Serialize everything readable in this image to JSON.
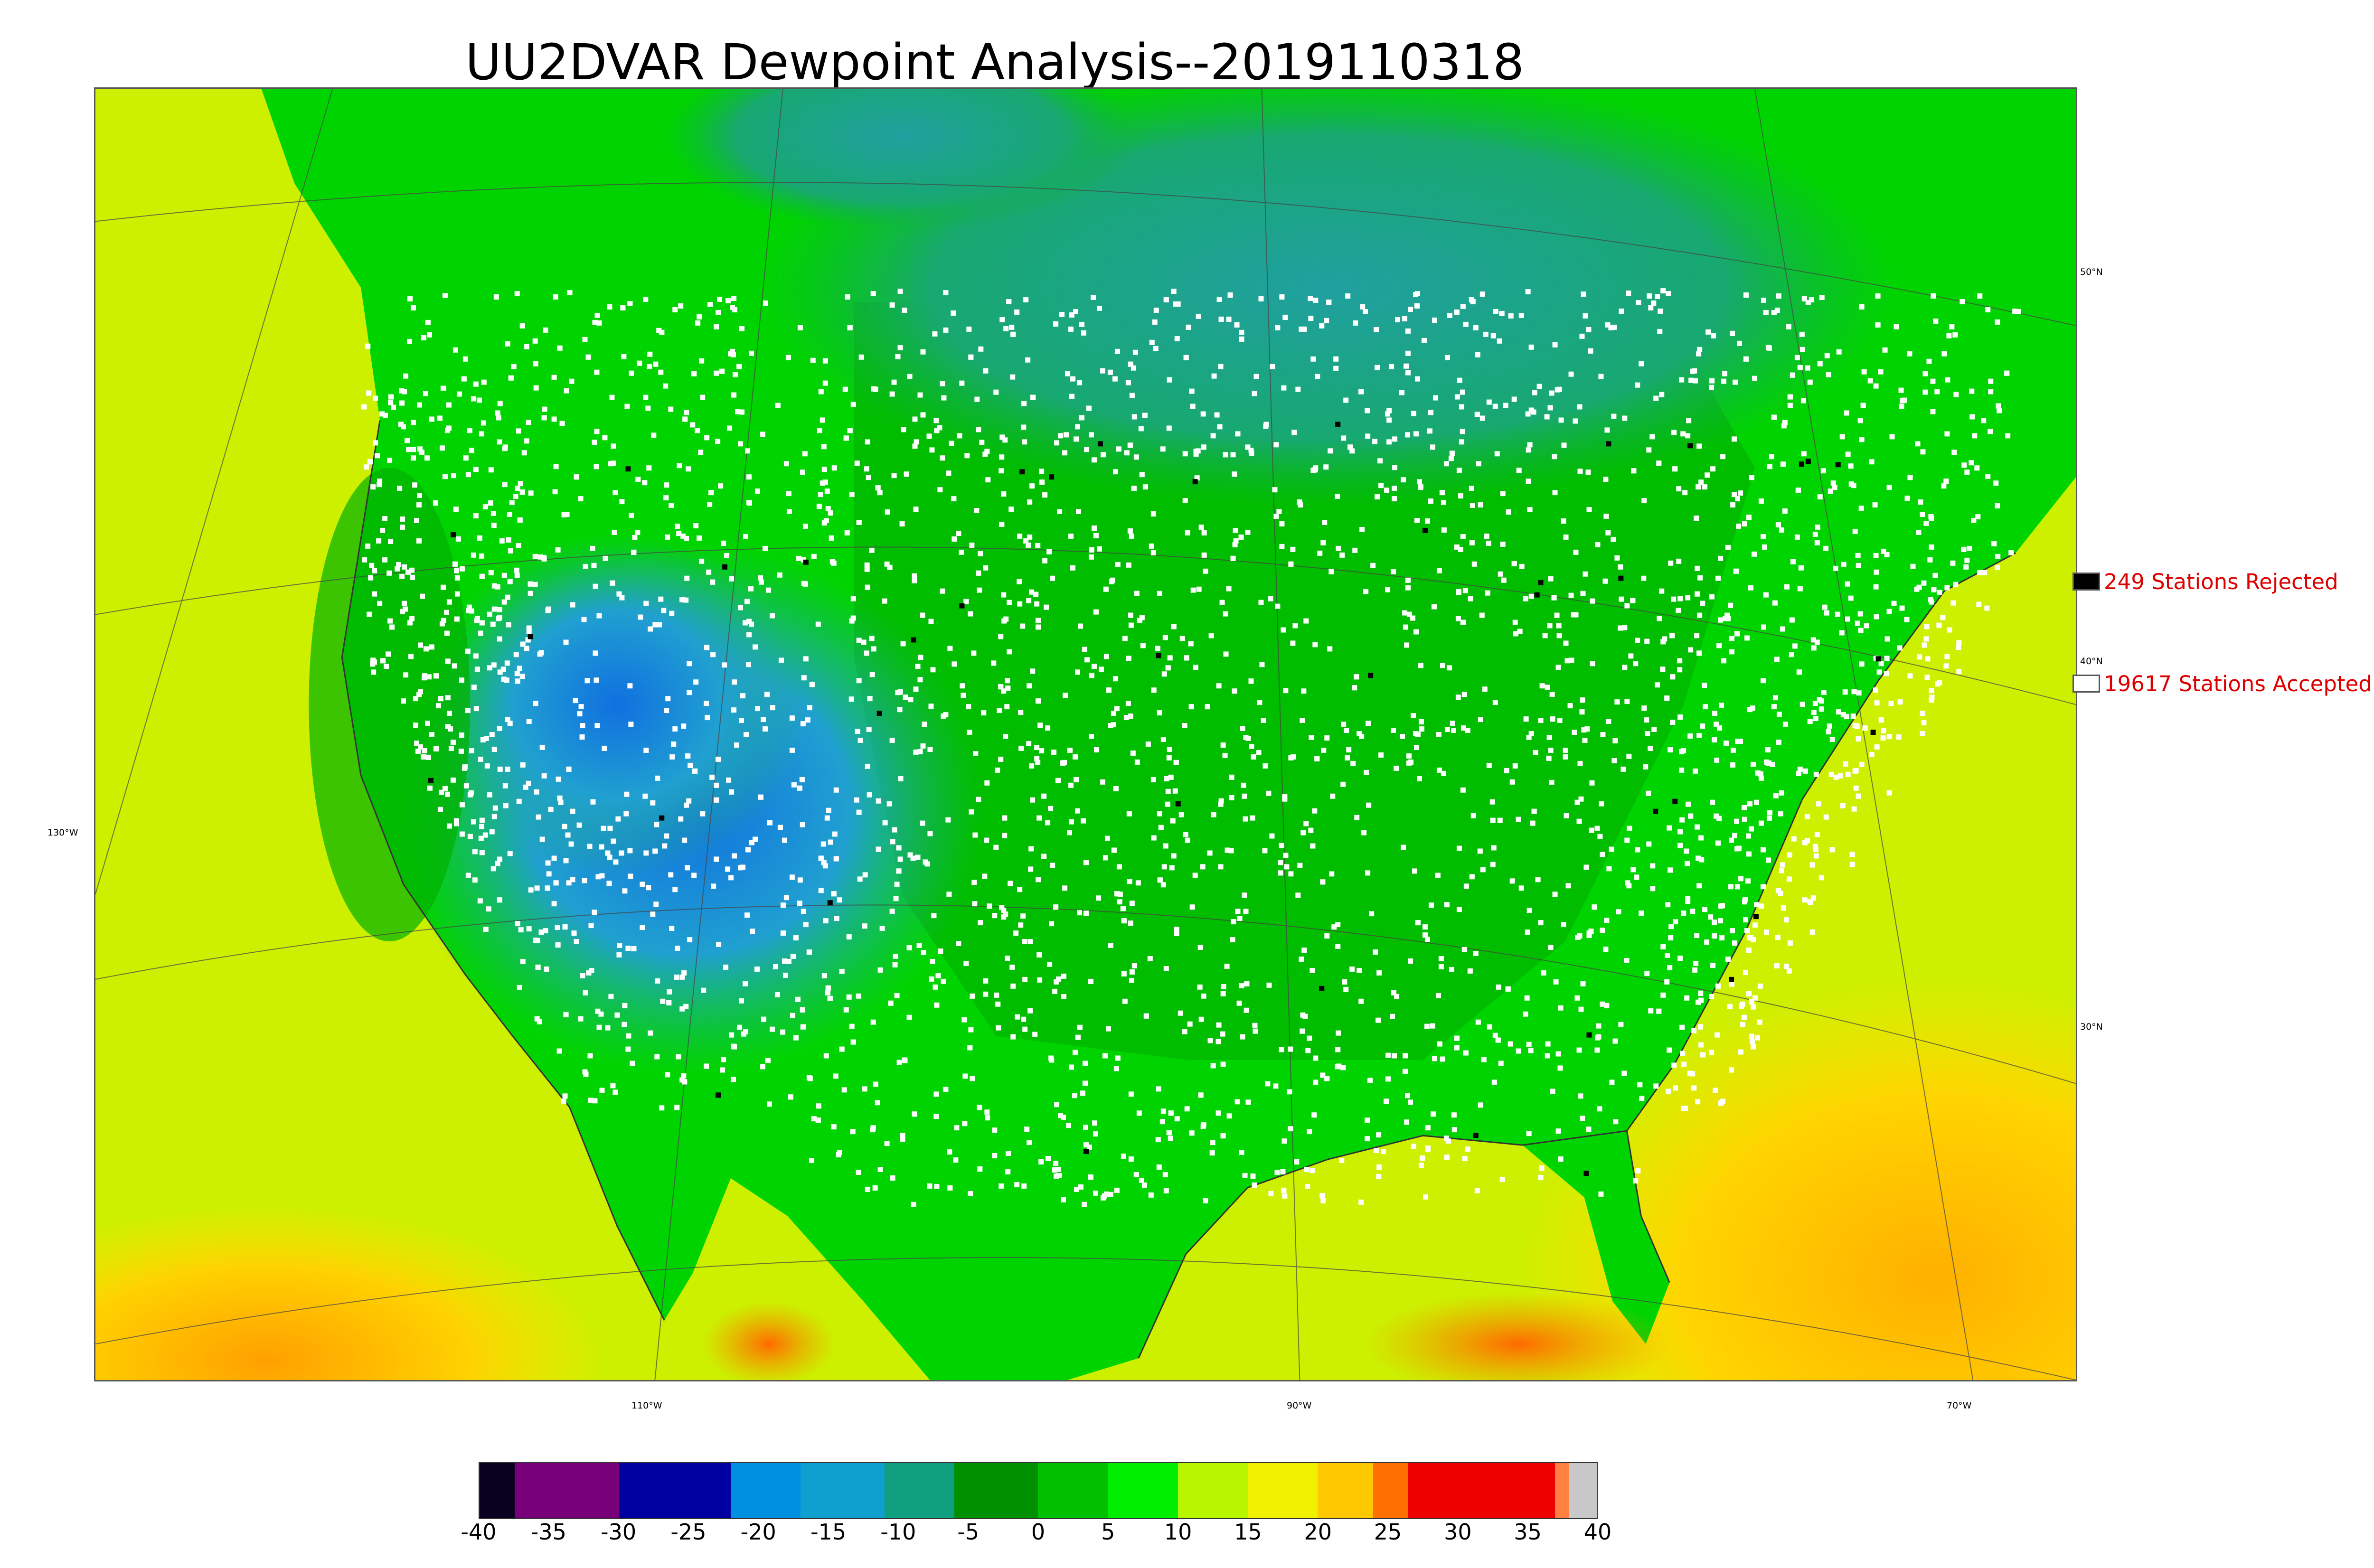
{
  "title": "UU2DVAR Dewpoint Analysis--2019110318",
  "map": {
    "lon_labels": [
      {
        "text": "130°W",
        "side": "left"
      },
      {
        "text": "110°W",
        "side": "bottom"
      },
      {
        "text": "90°W",
        "side": "bottom"
      },
      {
        "text": "70°W",
        "side": "bottom"
      }
    ],
    "lat_labels": [
      {
        "text": "50°N"
      },
      {
        "text": "40°N"
      },
      {
        "text": "30°N"
      }
    ],
    "colors": {
      "ocean_warm": "#ffd000",
      "ocean_hot": "#ff8c00",
      "land_green": "#00c800",
      "land_bright_green": "#00ee00",
      "mountain_blue": "#1e90e0",
      "north_teal": "#14a07a",
      "pacific_yellow": "#ccf500",
      "station_accepted": "#ffffff",
      "station_rejected": "#000000"
    }
  },
  "legend": {
    "rejected": {
      "label": "249 Stations Rejected",
      "color": "#000000"
    },
    "accepted": {
      "label": "19617 Stations Accepted",
      "color": "#ffffff"
    }
  },
  "colorbar": {
    "ticks": [
      "-40",
      "-35",
      "-30",
      "-25",
      "-20",
      "-15",
      "-10",
      "-5",
      "0",
      "5",
      "10",
      "15",
      "20",
      "25",
      "30",
      "35",
      "40"
    ],
    "range": [
      -40,
      40
    ],
    "segments": [
      {
        "from": -40,
        "to": -37.5,
        "color": "#0a0020"
      },
      {
        "from": -37.5,
        "to": -30,
        "color": "#780078"
      },
      {
        "from": -30,
        "to": -22,
        "color": "#0000a0"
      },
      {
        "from": -22,
        "to": -17,
        "color": "#0090e0"
      },
      {
        "from": -17,
        "to": -11,
        "color": "#10a0d0"
      },
      {
        "from": -11,
        "to": -6,
        "color": "#10a080"
      },
      {
        "from": -6,
        "to": 0,
        "color": "#009000"
      },
      {
        "from": 0,
        "to": 5,
        "color": "#00c000"
      },
      {
        "from": 5,
        "to": 10,
        "color": "#00ee00"
      },
      {
        "from": 10,
        "to": 15,
        "color": "#b8f500"
      },
      {
        "from": 15,
        "to": 20,
        "color": "#f0f000"
      },
      {
        "from": 20,
        "to": 24,
        "color": "#ffc800"
      },
      {
        "from": 24,
        "to": 26.5,
        "color": "#ff7000"
      },
      {
        "from": 26.5,
        "to": 37,
        "color": "#ee0000"
      },
      {
        "from": 37,
        "to": 38,
        "color": "#ff8040"
      },
      {
        "from": 38,
        "to": 40,
        "color": "#c8c8c8"
      }
    ]
  }
}
